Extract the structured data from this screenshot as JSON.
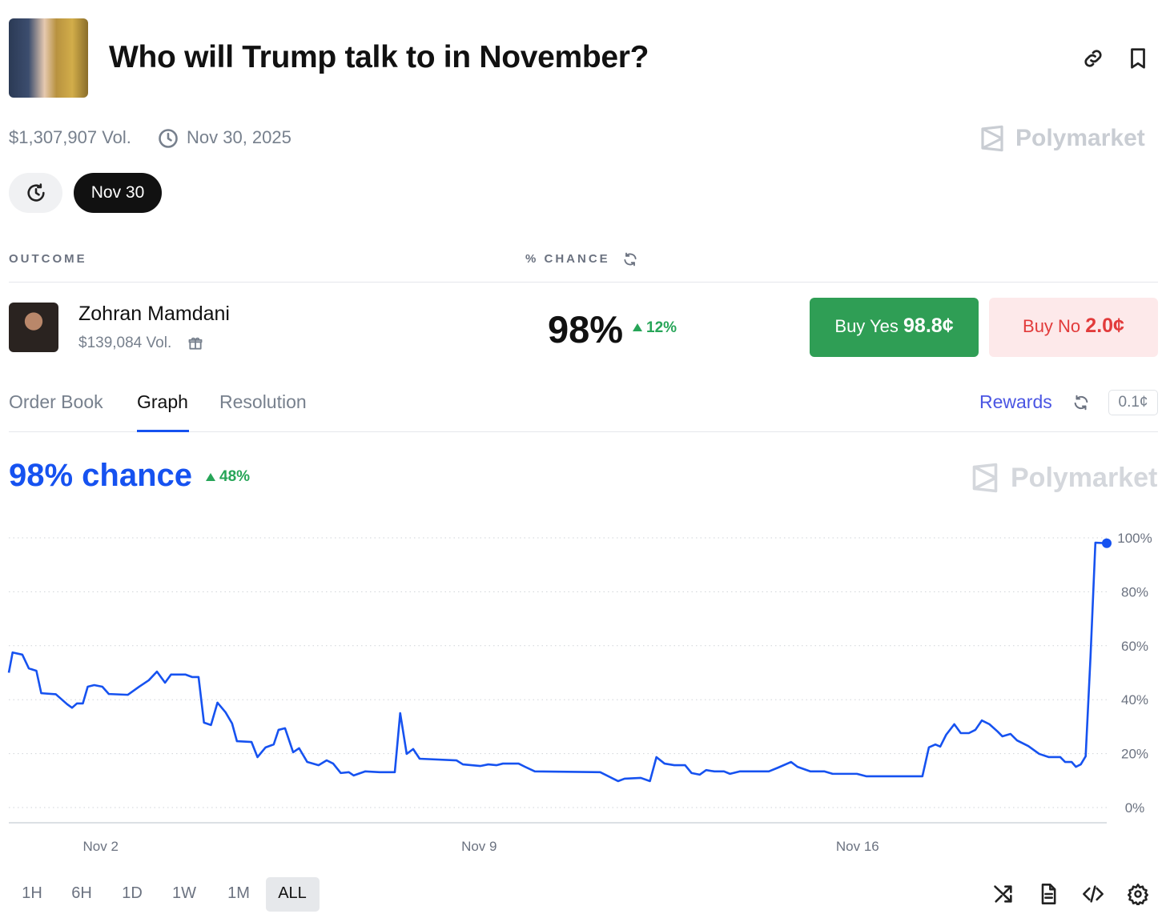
{
  "header": {
    "title": "Who will Trump talk to in November?",
    "volume": "$1,307,907 Vol.",
    "end_date": "Nov 30, 2025",
    "date_pill": "Nov 30"
  },
  "brand": "Polymarket",
  "table": {
    "columns": [
      "OUTCOME",
      "% CHANCE"
    ],
    "rows": [
      {
        "name": "Zohran Mamdani",
        "volume": "$139,084 Vol.",
        "chance": "98%",
        "change": "12%",
        "buy_yes": "Buy Yes",
        "yes_price": "98.8¢",
        "buy_no": "Buy No",
        "no_price": "2.0¢"
      }
    ]
  },
  "tabs": [
    "Order Book",
    "Graph",
    "Resolution"
  ],
  "rewards": "Rewards",
  "spread": "0.1¢",
  "ranges": [
    "1H",
    "6H",
    "1D",
    "1W",
    "1M",
    "ALL"
  ],
  "chart_data": {
    "type": "line",
    "title": "98% chance",
    "change": "48%",
    "color": "#1652f0",
    "x": [
      0.3,
      0.37,
      0.55,
      0.67,
      0.81,
      0.9,
      1.17,
      1.38,
      1.47,
      1.56,
      1.67,
      1.76,
      1.88,
      2.03,
      2.15,
      2.5,
      2.71,
      2.89,
      3.04,
      3.19,
      3.3,
      3.57,
      3.69,
      3.81,
      3.91,
      4.04,
      4.16,
      4.31,
      4.43,
      4.52,
      4.79,
      4.9,
      5.05,
      5.2,
      5.29,
      5.41,
      5.56,
      5.67,
      5.82,
      6.03,
      6.18,
      6.3,
      6.44,
      6.59,
      6.68,
      6.89,
      7.16,
      7.44,
      7.54,
      7.66,
      7.78,
      7.9,
      8.58,
      8.7,
      9.02,
      9.17,
      9.32,
      9.44,
      9.73,
      9.85,
      10.03,
      11.24,
      11.45,
      11.57,
      11.69,
      11.99,
      12.16,
      12.28,
      12.43,
      12.61,
      12.81,
      12.93,
      13.08,
      13.2,
      13.35,
      13.53,
      13.64,
      13.82,
      14.36,
      14.53,
      14.77,
      14.89,
      15.13,
      15.39,
      15.54,
      15.99,
      16.16,
      17.2,
      17.32,
      17.44,
      17.53,
      17.64,
      17.79,
      17.91,
      18.06,
      18.18,
      18.3,
      18.44,
      18.59,
      18.68,
      18.83,
      18.95,
      19.16,
      19.36,
      19.54,
      19.75,
      19.84,
      19.96,
      20.04,
      20.13,
      20.22,
      20.31,
      20.4,
      20.61
    ],
    "values": [
      50,
      57.5,
      56.7,
      51.6,
      50.7,
      42.4,
      42,
      38.3,
      37,
      38.6,
      38.6,
      44.8,
      45.4,
      44.8,
      42.1,
      41.8,
      44.8,
      47.2,
      50.4,
      46.3,
      49.3,
      49.3,
      48.4,
      48.4,
      31.5,
      30.6,
      38.9,
      35.3,
      31.2,
      24.6,
      24.3,
      18.7,
      22.3,
      23.4,
      28.8,
      29.4,
      20.5,
      22,
      16.9,
      15.7,
      17.5,
      16.3,
      12.8,
      13.1,
      11.9,
      13.4,
      13.1,
      13.1,
      35,
      19.9,
      21.7,
      18.1,
      17.5,
      16,
      15.4,
      16,
      15.7,
      16.3,
      16.3,
      15.1,
      13.4,
      13.1,
      11,
      9.8,
      10.7,
      11,
      9.8,
      18.7,
      16.3,
      15.7,
      15.7,
      12.8,
      12.2,
      13.9,
      13.4,
      13.4,
      12.5,
      13.4,
      13.4,
      14.8,
      16.9,
      15.1,
      13.4,
      13.4,
      12.5,
      12.5,
      11.6,
      11.6,
      22.3,
      23.4,
      22.6,
      27,
      30.9,
      27.6,
      27.6,
      28.8,
      32.3,
      30.9,
      28.2,
      26.4,
      27.3,
      24.9,
      22.8,
      19.9,
      18.7,
      18.7,
      16.9,
      16.9,
      15.1,
      16,
      19,
      56,
      98.2,
      98
    ],
    "xlim": [
      0.3,
      20.61
    ],
    "xticks": [
      {
        "value": 2,
        "label": "Nov 2"
      },
      {
        "value": 9,
        "label": "Nov 9"
      },
      {
        "value": 16,
        "label": "Nov 16"
      }
    ],
    "ylim": [
      0,
      100
    ],
    "yticks": [
      {
        "value": 0,
        "label": "0%"
      },
      {
        "value": 20,
        "label": "20%"
      },
      {
        "value": 40,
        "label": "40%"
      },
      {
        "value": 60,
        "label": "60%"
      },
      {
        "value": 80,
        "label": "80%"
      },
      {
        "value": 100,
        "label": "100%"
      }
    ],
    "grid": true
  }
}
